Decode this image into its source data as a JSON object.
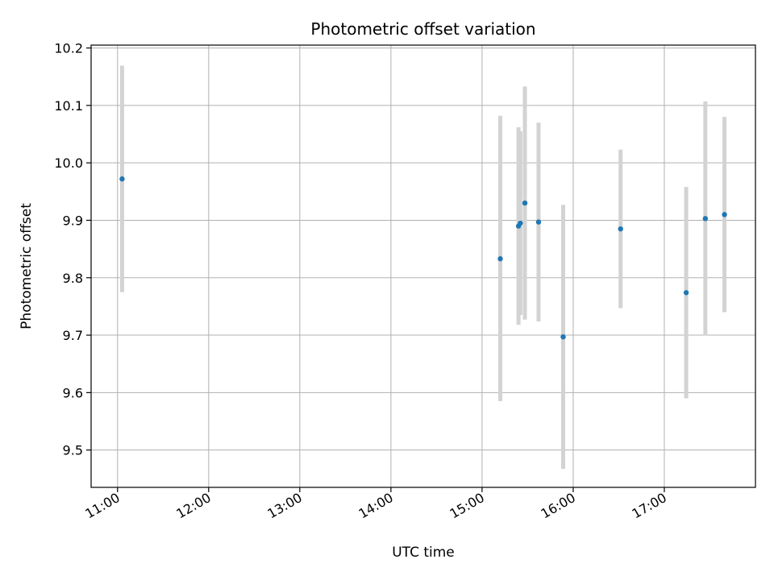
{
  "chart_data": {
    "type": "scatter",
    "title": "Photometric offset variation",
    "xlabel": "UTC time",
    "ylabel": "Photometric offset",
    "x_axis": {
      "unit": "hours UTC",
      "range": [
        10.71,
        18.0
      ],
      "ticks": [
        11,
        12,
        13,
        14,
        15,
        16,
        17
      ],
      "tick_labels": [
        "11:00",
        "12:00",
        "13:00",
        "14:00",
        "15:00",
        "16:00",
        "17:00"
      ]
    },
    "y_axis": {
      "range": [
        9.435,
        10.205
      ],
      "ticks": [
        9.5,
        9.6,
        9.7,
        9.8,
        9.9,
        10.0,
        10.1,
        10.2
      ],
      "tick_labels": [
        "9.5",
        "9.6",
        "9.7",
        "9.8",
        "9.9",
        "10.0",
        "10.1",
        "10.2"
      ]
    },
    "grid": true,
    "colors": {
      "point": "#1f77b4",
      "errorbar": "#d3d3d3",
      "grid": "#b0b0b0"
    },
    "points": [
      {
        "time": "11:03",
        "x": 11.05,
        "y": 9.972,
        "ylow": 9.775,
        "yhigh": 10.169
      },
      {
        "time": "15:12",
        "x": 15.2,
        "y": 9.833,
        "ylow": 9.585,
        "yhigh": 10.082
      },
      {
        "time": "15:24",
        "x": 15.4,
        "y": 9.89,
        "ylow": 9.718,
        "yhigh": 10.062
      },
      {
        "time": "15:25",
        "x": 15.42,
        "y": 9.895,
        "ylow": 9.735,
        "yhigh": 10.055
      },
      {
        "time": "15:28",
        "x": 15.47,
        "y": 9.93,
        "ylow": 9.727,
        "yhigh": 10.133
      },
      {
        "time": "15:37",
        "x": 15.62,
        "y": 9.897,
        "ylow": 9.724,
        "yhigh": 10.07
      },
      {
        "time": "15:53",
        "x": 15.89,
        "y": 9.697,
        "ylow": 9.467,
        "yhigh": 9.927
      },
      {
        "time": "16:31",
        "x": 16.52,
        "y": 9.885,
        "ylow": 9.747,
        "yhigh": 10.023
      },
      {
        "time": "17:14",
        "x": 17.24,
        "y": 9.774,
        "ylow": 9.59,
        "yhigh": 9.958
      },
      {
        "time": "17:27",
        "x": 17.45,
        "y": 9.903,
        "ylow": 9.699,
        "yhigh": 10.107
      },
      {
        "time": "17:40",
        "x": 17.66,
        "y": 9.91,
        "ylow": 9.74,
        "yhigh": 10.08
      }
    ]
  }
}
